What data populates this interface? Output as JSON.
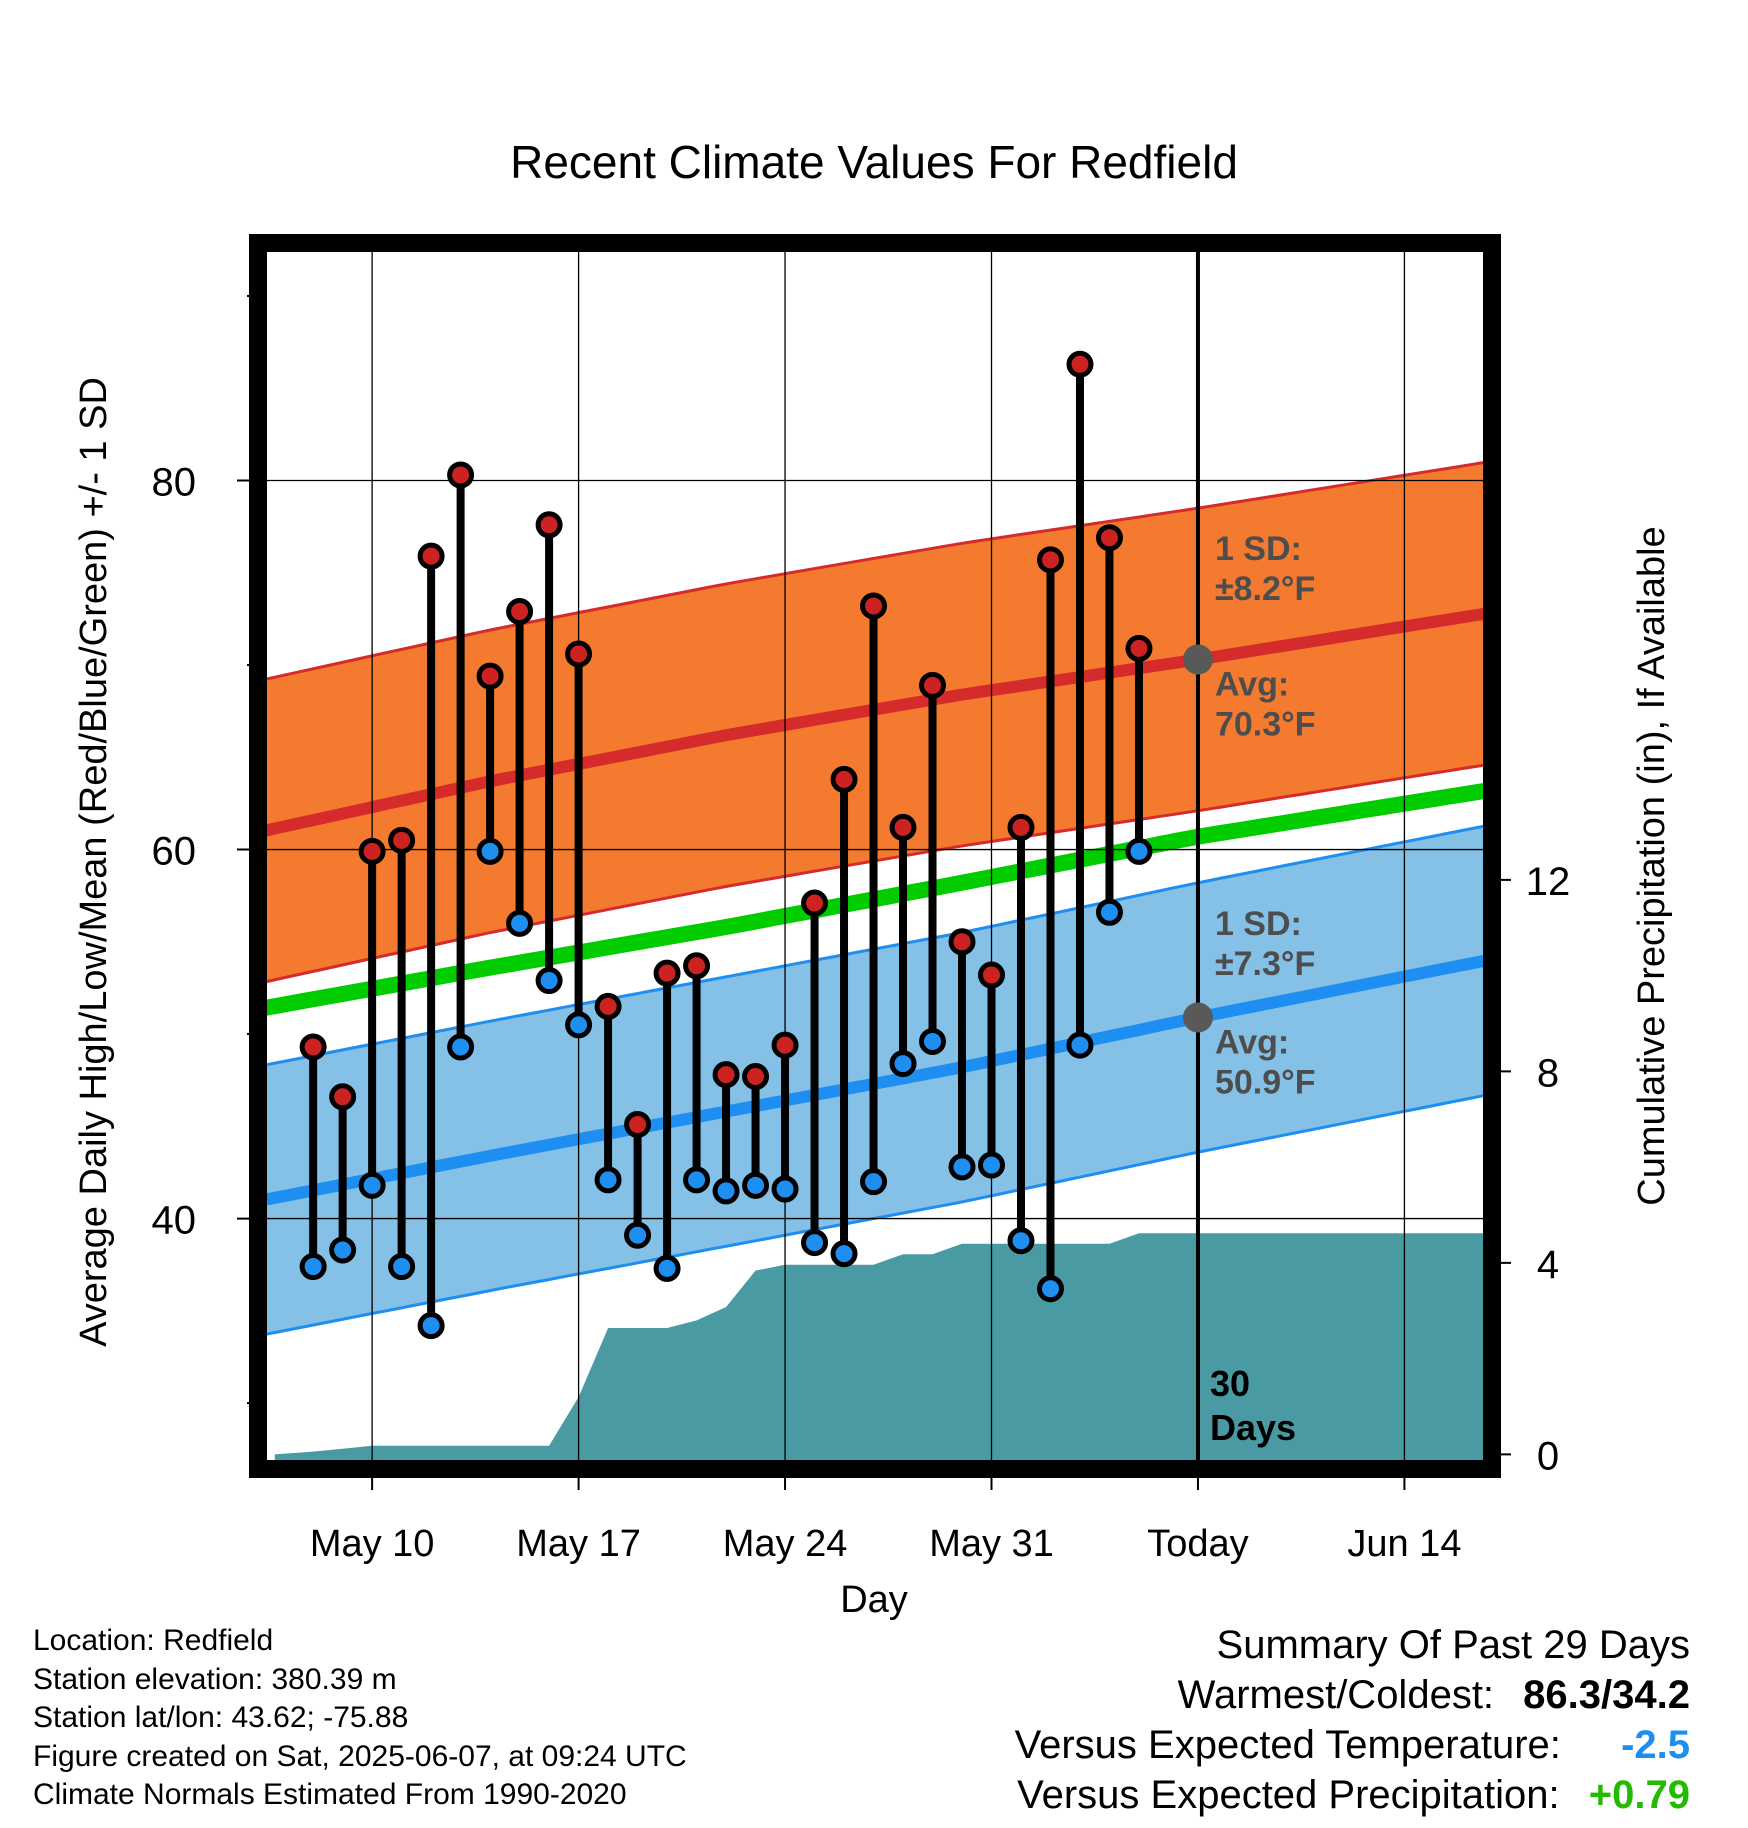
{
  "chart_data": {
    "type": "line",
    "title": "Recent Climate Values For Redfield",
    "xlabel": "Day",
    "ylabel": "Average Daily High/Low/Mean (Red/Blue/Green) +/- 1 SD",
    "y2label": "Cumulative Precipitation (in), If Available",
    "x_range": [
      -1.7,
      39.8
    ],
    "xticks": [
      {
        "day": 2,
        "label": "May 10"
      },
      {
        "day": 9,
        "label": "May 17"
      },
      {
        "day": 16,
        "label": "May 24"
      },
      {
        "day": 23,
        "label": "May 31"
      },
      {
        "day": 30,
        "label": "Today"
      },
      {
        "day": 37,
        "label": "Jun 14"
      }
    ],
    "ylim": [
      26.7,
      92.6
    ],
    "yticks": [
      40,
      60,
      80
    ],
    "y2lim": [
      -0.2,
      25.2
    ],
    "y2ticks": [
      0,
      4,
      8,
      12
    ],
    "today_day": 30,
    "today_label_number": "30",
    "today_label_word": "Days",
    "normals": {
      "high_avg": [
        [
          -1.7,
          61.0
        ],
        [
          6,
          63.7
        ],
        [
          14,
          66.2
        ],
        [
          22,
          68.4
        ],
        [
          30,
          70.3
        ],
        [
          39.8,
          72.8
        ]
      ],
      "high_sd": 8.2,
      "low_avg": [
        [
          -1.7,
          41.0
        ],
        [
          6,
          43.4
        ],
        [
          14,
          45.8
        ],
        [
          22,
          48.2
        ],
        [
          30,
          50.9
        ],
        [
          39.8,
          54.0
        ]
      ],
      "low_sd": 7.3,
      "mean": [
        [
          -1.7,
          51.4
        ],
        [
          6,
          53.6
        ],
        [
          14,
          55.8
        ],
        [
          22,
          58.2
        ],
        [
          30,
          60.7
        ],
        [
          39.8,
          63.2
        ]
      ]
    },
    "observations": [
      {
        "day": 0,
        "high": 49.3,
        "low": 37.4
      },
      {
        "day": 1,
        "high": 46.6,
        "low": 38.3
      },
      {
        "day": 2,
        "high": 59.9,
        "low": 41.8
      },
      {
        "day": 3,
        "high": 60.5,
        "low": 37.4
      },
      {
        "day": 4,
        "high": 75.9,
        "low": 34.2
      },
      {
        "day": 5,
        "high": 80.3,
        "low": 49.3
      },
      {
        "day": 6,
        "high": 69.4,
        "low": 59.9
      },
      {
        "day": 7,
        "high": 72.9,
        "low": 56.0
      },
      {
        "day": 8,
        "high": 77.6,
        "low": 52.9
      },
      {
        "day": 9,
        "high": 70.6,
        "low": 50.5
      },
      {
        "day": 10,
        "high": 51.5,
        "low": 42.1
      },
      {
        "day": 11,
        "high": 45.1,
        "low": 39.1
      },
      {
        "day": 12,
        "high": 53.3,
        "low": 37.3
      },
      {
        "day": 13,
        "high": 53.7,
        "low": 42.1
      },
      {
        "day": 14,
        "high": 47.8,
        "low": 41.5
      },
      {
        "day": 15,
        "high": 47.7,
        "low": 41.8
      },
      {
        "day": 16,
        "high": 49.4,
        "low": 41.6
      },
      {
        "day": 17,
        "high": 57.1,
        "low": 38.7
      },
      {
        "day": 18,
        "high": 63.8,
        "low": 38.1
      },
      {
        "day": 19,
        "high": 73.2,
        "low": 42.0
      },
      {
        "day": 20,
        "high": 61.2,
        "low": 48.4
      },
      {
        "day": 21,
        "high": 68.9,
        "low": 49.6
      },
      {
        "day": 22,
        "high": 55.0,
        "low": 42.8
      },
      {
        "day": 23,
        "high": 53.2,
        "low": 42.9
      },
      {
        "day": 24,
        "high": 61.2,
        "low": 38.8
      },
      {
        "day": 25,
        "high": 75.7,
        "low": 36.2
      },
      {
        "day": 26,
        "high": 86.3,
        "low": 49.4
      },
      {
        "day": 27,
        "high": 76.9,
        "low": 56.6
      },
      {
        "day": 28,
        "high": 70.9,
        "low": 59.9
      }
    ],
    "precipitation": [
      [
        -1.3,
        0.0
      ],
      [
        0,
        0.06
      ],
      [
        1,
        0.12
      ],
      [
        2,
        0.18
      ],
      [
        3,
        0.18
      ],
      [
        7,
        0.18
      ],
      [
        8,
        0.18
      ],
      [
        9,
        1.2
      ],
      [
        10,
        2.64
      ],
      [
        11,
        2.64
      ],
      [
        12,
        2.64
      ],
      [
        13,
        2.8
      ],
      [
        14,
        3.08
      ],
      [
        15,
        3.84
      ],
      [
        16,
        3.96
      ],
      [
        17,
        3.96
      ],
      [
        18,
        3.96
      ],
      [
        19,
        3.96
      ],
      [
        20,
        4.18
      ],
      [
        21,
        4.18
      ],
      [
        22,
        4.4
      ],
      [
        23,
        4.4
      ],
      [
        24,
        4.4
      ],
      [
        25,
        4.4
      ],
      [
        26,
        4.4
      ],
      [
        27,
        4.4
      ],
      [
        28,
        4.62
      ],
      [
        29,
        4.62
      ],
      [
        39.8,
        4.62
      ]
    ],
    "annotations": {
      "high_sd_heading": "1 SD:",
      "high_sd_value": "±8.2°F",
      "high_avg_heading": "Avg:",
      "high_avg_value": "70.3°F",
      "low_sd_heading": "1 SD:",
      "low_sd_value": "±7.3°F",
      "low_avg_heading": "Avg:",
      "low_avg_value": "50.9°F"
    },
    "colors": {
      "high_band": "#f37a2f",
      "high_line": "#d62b2b",
      "low_band": "#85c1e6",
      "low_line": "#1e8ef0",
      "mean_line": "#00cc00",
      "precip": "#4a9aa3",
      "high_dot": "#cc2222",
      "low_dot": "#1e8ef0",
      "annotation": "#4d4d4d"
    }
  },
  "info": {
    "location": "Location: Redfield",
    "elevation": "Station elevation: 380.39 m",
    "latlon": "Station lat/lon: 43.62; -75.88",
    "created": "Figure created on Sat, 2025-06-07, at 09:24 UTC",
    "normals": "Climate Normals Estimated From 1990-2020"
  },
  "summary": {
    "heading": "Summary Of Past 29 Days",
    "warmest_label": "Warmest/Coldest:",
    "warmest_value": "86.3/34.2",
    "temp_label": "Versus Expected Temperature:",
    "temp_value": "-2.5",
    "temp_color": "#1e8ef0",
    "precip_label": "Versus Expected Precipitation:",
    "precip_value": "+0.79",
    "precip_color": "#22bb00"
  }
}
